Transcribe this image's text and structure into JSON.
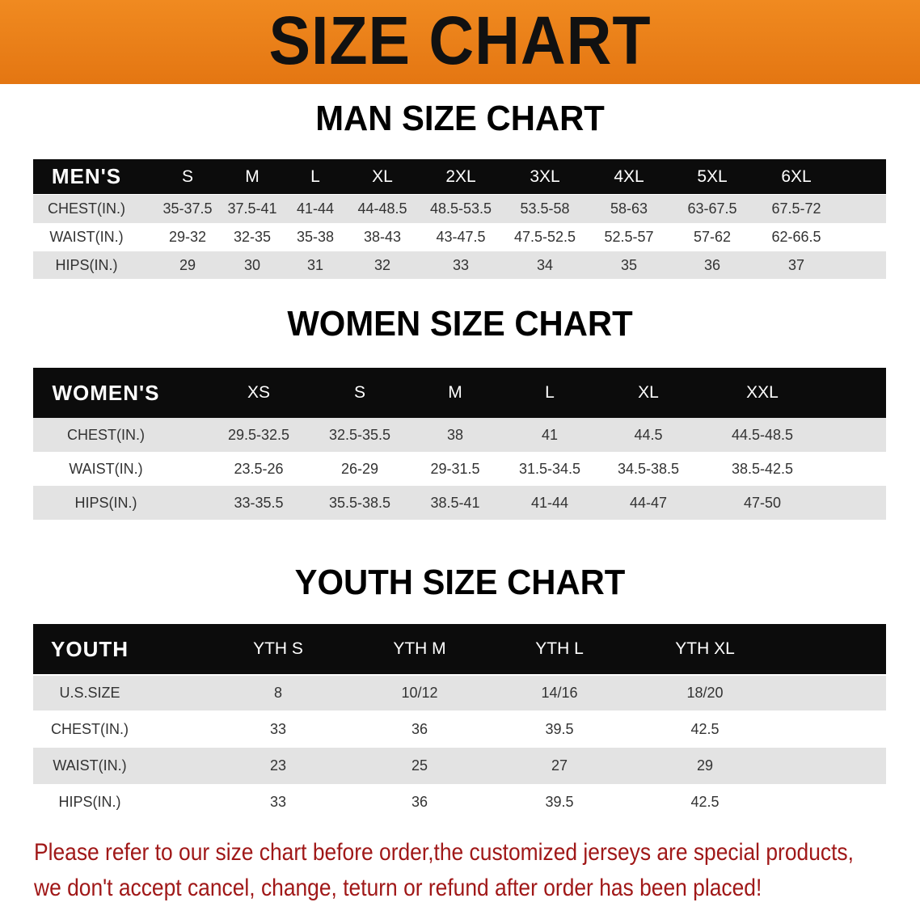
{
  "banner": {
    "title": "SIZE CHART",
    "color": "#e8801a"
  },
  "men": {
    "title": "MAN SIZE CHART",
    "header": [
      "MEN'S",
      "S",
      "M",
      "L",
      "XL",
      "2XL",
      "3XL",
      "4XL",
      "5XL",
      "6XL"
    ],
    "rows": [
      [
        "CHEST(IN.)",
        "35-37.5",
        "37.5-41",
        "41-44",
        "44-48.5",
        "48.5-53.5",
        "53.5-58",
        "58-63",
        "63-67.5",
        "67.5-72"
      ],
      [
        "WAIST(IN.)",
        "29-32",
        "32-35",
        "35-38",
        "38-43",
        "43-47.5",
        "47.5-52.5",
        "52.5-57",
        "57-62",
        "62-66.5"
      ],
      [
        "HIPS(IN.)",
        "29",
        "30",
        "31",
        "32",
        "33",
        "34",
        "35",
        "36",
        "37"
      ]
    ]
  },
  "women": {
    "title": "WOMEN SIZE CHART",
    "header": [
      "WOMEN'S",
      "XS",
      "S",
      "M",
      "L",
      "XL",
      "XXL"
    ],
    "rows": [
      [
        "CHEST(IN.)",
        "29.5-32.5",
        "32.5-35.5",
        "38",
        "41",
        "44.5",
        "44.5-48.5"
      ],
      [
        "WAIST(IN.)",
        "23.5-26",
        "26-29",
        "29-31.5",
        "31.5-34.5",
        "34.5-38.5",
        "38.5-42.5"
      ],
      [
        "HIPS(IN.)",
        "33-35.5",
        "35.5-38.5",
        "38.5-41",
        "41-44",
        "44-47",
        "47-50"
      ]
    ]
  },
  "youth": {
    "title": "YOUTH SIZE CHART",
    "header": [
      "YOUTH",
      "YTH S",
      "YTH M",
      "YTH L",
      "YTH XL"
    ],
    "rows": [
      [
        "U.S.SIZE",
        "8",
        "10/12",
        "14/16",
        "18/20"
      ],
      [
        "CHEST(IN.)",
        "33",
        "36",
        "39.5",
        "42.5"
      ],
      [
        "WAIST(IN.)",
        "23",
        "25",
        "27",
        "29"
      ],
      [
        "HIPS(IN.)",
        "33",
        "36",
        "39.5",
        "42.5"
      ]
    ]
  },
  "note": {
    "line1": "Please refer to our size chart before order,the customized jerseys are special products,",
    "line2": "we don't accept cancel, change, teturn or refund after order has been placed!",
    "color": "#a01818"
  }
}
